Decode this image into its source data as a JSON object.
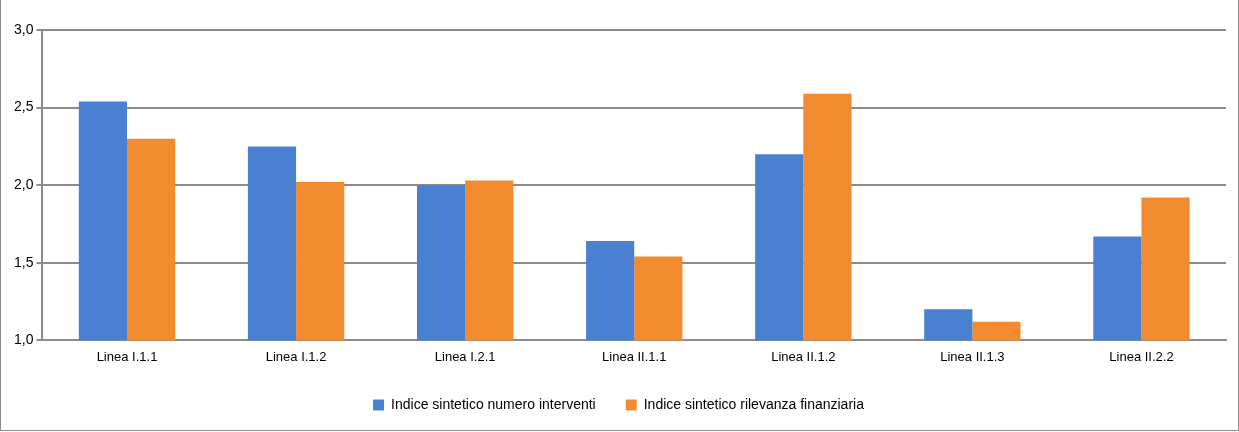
{
  "chart_data": {
    "type": "bar",
    "categories": [
      "Linea I.1.1",
      "Linea I.1.2",
      "Linea I.2.1",
      "Linea II.1.1",
      "Linea II.1.2",
      "Linea II.1.3",
      "Linea II.2.2"
    ],
    "series": [
      {
        "name": "Indice sintetico numero interventi",
        "color": "#4a80d2",
        "values": [
          2.54,
          2.25,
          2.0,
          1.64,
          2.2,
          1.2,
          1.67
        ]
      },
      {
        "name": "Indice sintetico rilevanza finanziaria",
        "color": "#f28b30",
        "values": [
          2.3,
          2.02,
          2.03,
          1.54,
          2.59,
          1.12,
          1.92
        ]
      }
    ],
    "ylim": [
      1.0,
      3.0
    ],
    "yticks": [
      {
        "value": 1.0,
        "label": "1,0"
      },
      {
        "value": 1.5,
        "label": "1,5"
      },
      {
        "value": 2.0,
        "label": "2,0"
      },
      {
        "value": 2.5,
        "label": "2,5"
      },
      {
        "value": 3.0,
        "label": "3,0"
      }
    ],
    "grid": "y",
    "legend": "bottom"
  }
}
